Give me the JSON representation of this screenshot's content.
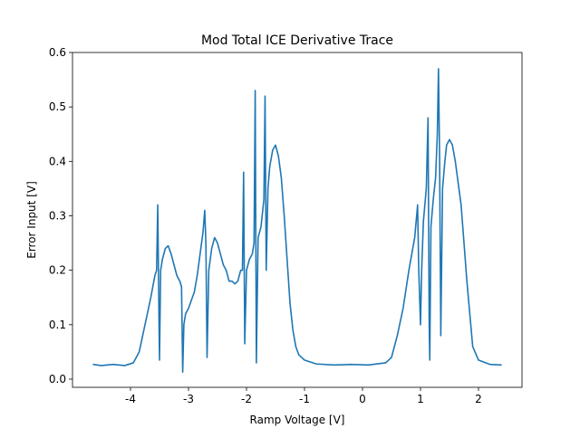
{
  "chart_data": {
    "type": "line",
    "title": "Mod Total ICE Derivative Trace",
    "x_label": "Ramp Voltage [V]",
    "y_label": "Error Input [V]",
    "xlim": [
      -5.0,
      2.75
    ],
    "xticks": [
      -4,
      -3,
      -2,
      -1,
      0,
      1,
      2
    ],
    "ylim": [
      -0.015,
      0.6
    ],
    "yticks": [
      {
        "value": 0,
        "label": "0.0"
      },
      0.1,
      0.2,
      0.3,
      0.4,
      0.5,
      0.6
    ],
    "series": [
      {
        "color": "#1f77b4",
        "x": [
          -4.65,
          -4.5,
          -4.3,
          -4.1,
          -3.95,
          -3.85,
          -3.75,
          -3.65,
          -3.58,
          -3.55,
          -3.53,
          -3.51,
          -3.5,
          -3.48,
          -3.45,
          -3.4,
          -3.35,
          -3.3,
          -3.25,
          -3.2,
          -3.15,
          -3.12,
          -3.1,
          -3.08,
          -3.05,
          -3.0,
          -2.95,
          -2.9,
          -2.85,
          -2.8,
          -2.75,
          -2.72,
          -2.7,
          -2.68,
          -2.65,
          -2.6,
          -2.55,
          -2.5,
          -2.45,
          -2.4,
          -2.35,
          -2.3,
          -2.25,
          -2.2,
          -2.15,
          -2.1,
          -2.07,
          -2.05,
          -2.03,
          -2.0,
          -1.95,
          -1.9,
          -1.87,
          -1.85,
          -1.83,
          -1.8,
          -1.75,
          -1.7,
          -1.68,
          -1.66,
          -1.63,
          -1.6,
          -1.55,
          -1.5,
          -1.45,
          -1.4,
          -1.35,
          -1.3,
          -1.25,
          -1.2,
          -1.15,
          -1.1,
          -1.0,
          -0.8,
          -0.5,
          -0.2,
          0.1,
          0.4,
          0.5,
          0.55,
          0.6,
          0.7,
          0.8,
          0.9,
          0.95,
          0.97,
          1.0,
          1.02,
          1.05,
          1.1,
          1.13,
          1.15,
          1.16,
          1.18,
          1.22,
          1.26,
          1.29,
          1.31,
          1.33,
          1.35,
          1.38,
          1.42,
          1.45,
          1.5,
          1.55,
          1.6,
          1.7,
          1.8,
          1.85,
          1.9,
          2.0,
          2.2,
          2.4
        ],
        "values": [
          0.027,
          0.025,
          0.027,
          0.025,
          0.03,
          0.05,
          0.1,
          0.15,
          0.19,
          0.2,
          0.32,
          0.12,
          0.035,
          0.2,
          0.22,
          0.24,
          0.245,
          0.23,
          0.21,
          0.19,
          0.18,
          0.17,
          0.013,
          0.1,
          0.12,
          0.13,
          0.145,
          0.16,
          0.19,
          0.23,
          0.27,
          0.31,
          0.25,
          0.04,
          0.2,
          0.24,
          0.26,
          0.25,
          0.23,
          0.21,
          0.2,
          0.18,
          0.18,
          0.175,
          0.18,
          0.2,
          0.2,
          0.38,
          0.065,
          0.2,
          0.22,
          0.23,
          0.25,
          0.53,
          0.03,
          0.26,
          0.28,
          0.33,
          0.52,
          0.2,
          0.35,
          0.39,
          0.42,
          0.43,
          0.41,
          0.37,
          0.3,
          0.22,
          0.14,
          0.09,
          0.06,
          0.045,
          0.035,
          0.028,
          0.026,
          0.027,
          0.026,
          0.03,
          0.04,
          0.06,
          0.08,
          0.13,
          0.2,
          0.26,
          0.32,
          0.2,
          0.1,
          0.2,
          0.29,
          0.35,
          0.48,
          0.1,
          0.035,
          0.28,
          0.33,
          0.37,
          0.45,
          0.57,
          0.4,
          0.08,
          0.35,
          0.4,
          0.43,
          0.44,
          0.43,
          0.4,
          0.32,
          0.18,
          0.12,
          0.06,
          0.035,
          0.027,
          0.026
        ]
      }
    ]
  }
}
